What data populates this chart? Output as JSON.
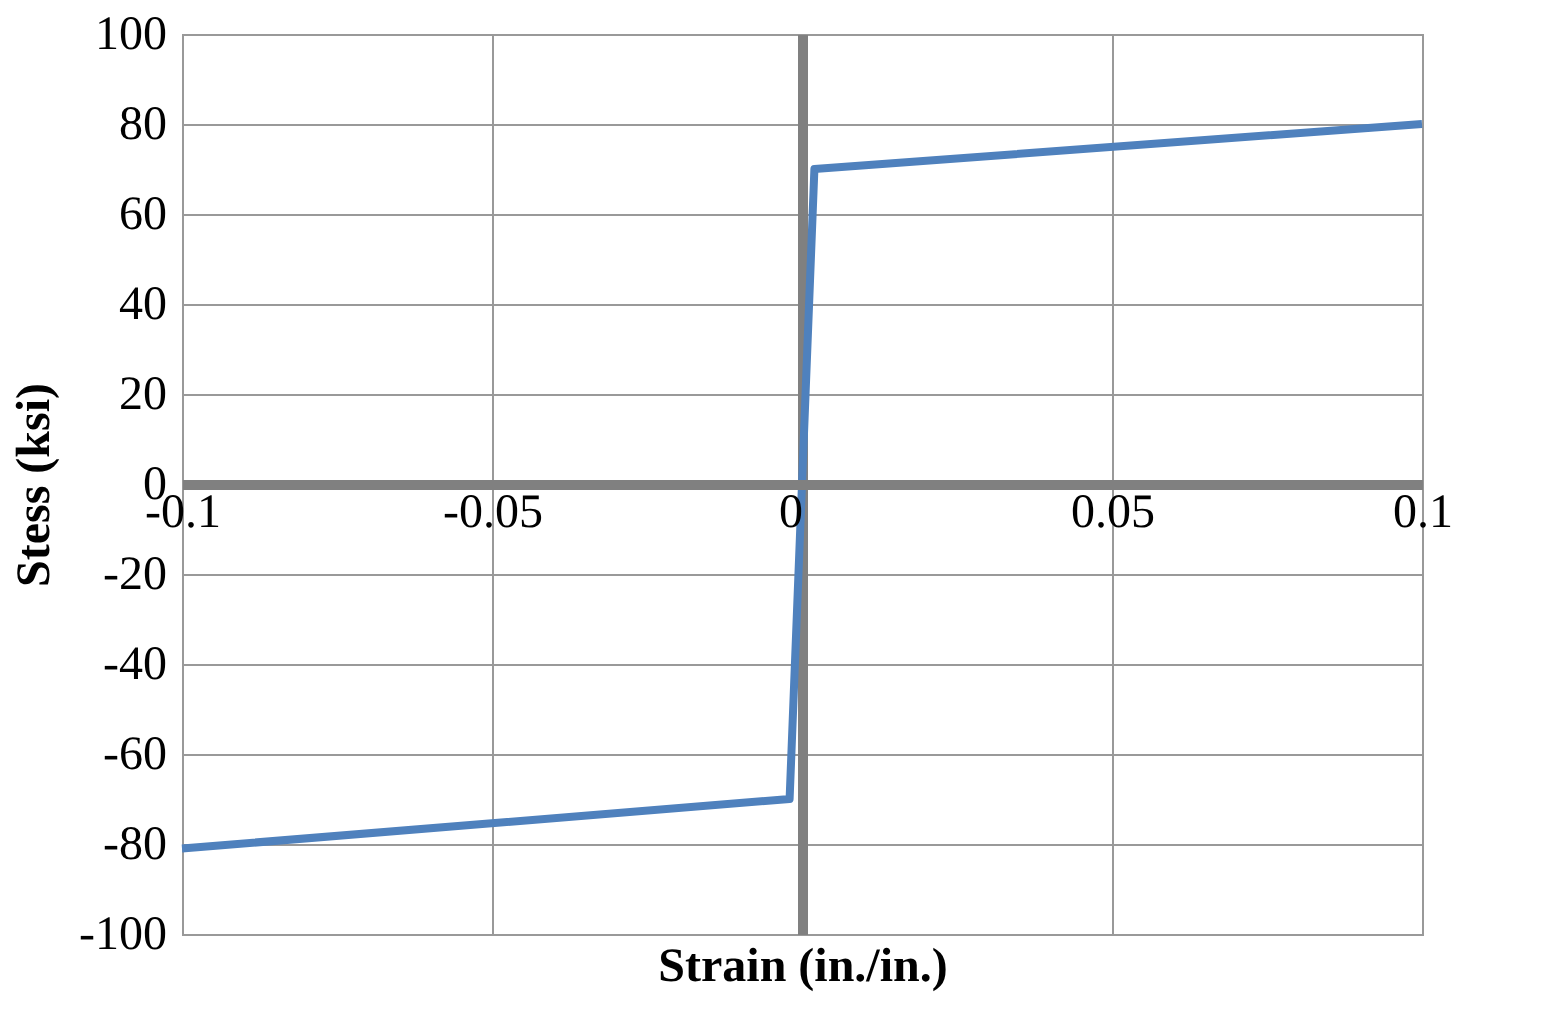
{
  "chart_data": {
    "type": "line",
    "xlabel": "Strain (in./in.)",
    "ylabel": "Stess (ksi)",
    "x": [
      -0.1,
      -0.002,
      0.002,
      0.1
    ],
    "series": [
      {
        "color": "#4f81bd",
        "values": [
          -81,
          -70,
          70,
          80
        ]
      }
    ],
    "xlim": [
      -0.1,
      0.1
    ],
    "xticks": [
      -0.1,
      -0.05,
      0,
      0.05,
      0.1
    ],
    "ylim": [
      -100,
      100
    ],
    "yticks": [
      -100,
      -80,
      -60,
      -40,
      -20,
      0,
      20,
      40,
      60,
      80,
      100
    ],
    "grid": true,
    "marker": "none",
    "line_style": "solid"
  }
}
